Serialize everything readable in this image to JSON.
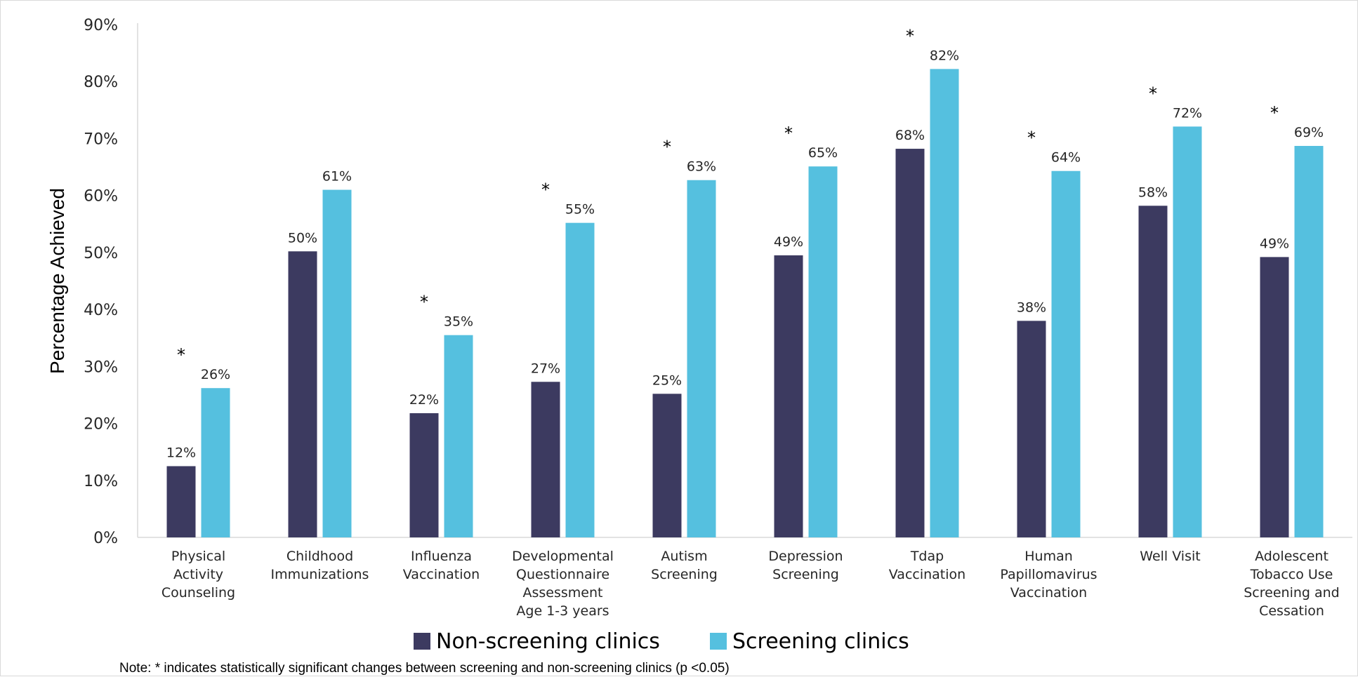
{
  "chart_data": {
    "type": "bar",
    "ylabel": "Percentage Achieved",
    "ylim": [
      0,
      90
    ],
    "yticks": [
      "0%",
      "10%",
      "20%",
      "30%",
      "40%",
      "50%",
      "60%",
      "70%",
      "80%",
      "90%"
    ],
    "grid": false,
    "legend_position": "bottom",
    "categories": [
      [
        "Physical",
        "Activity",
        "Counseling"
      ],
      [
        "Childhood",
        "Immunizations"
      ],
      [
        "Influenza",
        "Vaccination"
      ],
      [
        "Developmental",
        "Questionnaire",
        "Assessment",
        "Age 1-3 years"
      ],
      [
        "Autism",
        "Screening"
      ],
      [
        "Depression",
        "Screening"
      ],
      [
        "Tdap",
        "Vaccination"
      ],
      [
        "Human",
        "Papillomavirus",
        "Vaccination"
      ],
      [
        "Well Visit"
      ],
      [
        "Adolescent",
        "Tobacco Use",
        "Screening and",
        "Cessation"
      ]
    ],
    "series": [
      {
        "name": "Non-screening clinics",
        "color": "#3c3a60",
        "values": [
          12.5,
          50.2,
          21.8,
          27.3,
          25.2,
          49.5,
          68.2,
          38.0,
          58.2,
          49.2
        ],
        "labels": [
          "12%",
          "50%",
          "22%",
          "27%",
          "25%",
          "49%",
          "68%",
          "38%",
          "58%",
          "49%"
        ]
      },
      {
        "name": "Screening clinics",
        "color": "#55c0df",
        "values": [
          26.2,
          61.0,
          35.5,
          55.2,
          62.7,
          65.1,
          82.2,
          64.3,
          72.1,
          68.7
        ],
        "labels": [
          "26%",
          "61%",
          "35%",
          "55%",
          "63%",
          "65%",
          "82%",
          "64%",
          "72%",
          "69%"
        ]
      }
    ],
    "significance_marker": "*",
    "significant": [
      true,
      false,
      true,
      true,
      true,
      true,
      true,
      true,
      true,
      true
    ],
    "note": "Note: * indicates statistically significant changes between screening and non-screening clinics (p <0.05)"
  }
}
